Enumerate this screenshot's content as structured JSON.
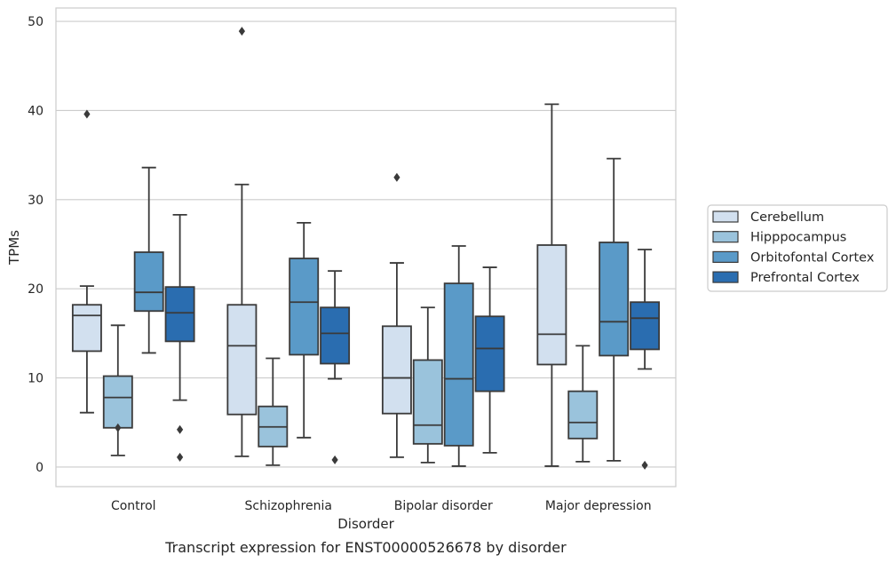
{
  "chart_data": {
    "type": "box",
    "title": "",
    "caption": "Transcript expression for ENST00000526678 by disorder",
    "xlabel": "Disorder",
    "ylabel": "TPMs",
    "ylim": [
      -2.2,
      51.5
    ],
    "yticks": [
      0,
      10,
      20,
      30,
      40,
      50
    ],
    "grid": true,
    "legend_position": "right",
    "categories": [
      "Control",
      "Schizophrenia",
      "Bipolar disorder",
      "Major depression"
    ],
    "series": [
      {
        "name": "Cerebellum",
        "color": "#d2e0ef",
        "boxes": [
          {
            "low": 6.1,
            "q1": 13.0,
            "median": 17.0,
            "q3": 18.2,
            "high": 20.3,
            "outliers": [
              39.6
            ]
          },
          {
            "low": 1.2,
            "q1": 5.9,
            "median": 13.6,
            "q3": 18.2,
            "high": 31.7,
            "outliers": [
              48.9
            ]
          },
          {
            "low": 1.1,
            "q1": 6.0,
            "median": 10.0,
            "q3": 15.8,
            "high": 22.9,
            "outliers": [
              32.5
            ]
          },
          {
            "low": 0.1,
            "q1": 11.5,
            "median": 14.9,
            "q3": 24.9,
            "high": 40.7,
            "outliers": []
          }
        ]
      },
      {
        "name": "Hipppocampus",
        "color": "#9ac3dc",
        "boxes": [
          {
            "low": 1.3,
            "q1": 4.4,
            "median": 7.8,
            "q3": 10.2,
            "high": 15.9,
            "outliers": [
              4.4
            ]
          },
          {
            "low": 0.2,
            "q1": 2.3,
            "median": 4.5,
            "q3": 6.8,
            "high": 12.2,
            "outliers": []
          },
          {
            "low": 0.5,
            "q1": 2.6,
            "median": 4.7,
            "q3": 12.0,
            "high": 17.9,
            "outliers": []
          },
          {
            "low": 0.6,
            "q1": 3.2,
            "median": 5.0,
            "q3": 8.5,
            "high": 13.6,
            "outliers": []
          }
        ]
      },
      {
        "name": "Orbitofontal Cortex",
        "color": "#5a9ac8",
        "boxes": [
          {
            "low": 12.8,
            "q1": 17.5,
            "median": 19.6,
            "q3": 24.1,
            "high": 33.6,
            "outliers": []
          },
          {
            "low": 3.3,
            "q1": 12.6,
            "median": 18.5,
            "q3": 23.4,
            "high": 27.4,
            "outliers": []
          },
          {
            "low": 0.1,
            "q1": 2.4,
            "median": 9.9,
            "q3": 20.6,
            "high": 24.8,
            "outliers": []
          },
          {
            "low": 0.7,
            "q1": 12.5,
            "median": 16.3,
            "q3": 25.2,
            "high": 34.6,
            "outliers": []
          }
        ]
      },
      {
        "name": "Prefrontal Cortex",
        "color": "#2a6db0",
        "boxes": [
          {
            "low": 7.5,
            "q1": 14.1,
            "median": 17.3,
            "q3": 20.2,
            "high": 28.3,
            "outliers": [
              4.2,
              1.1
            ]
          },
          {
            "low": 9.9,
            "q1": 11.6,
            "median": 15.0,
            "q3": 17.9,
            "high": 22.0,
            "outliers": [
              0.8
            ]
          },
          {
            "low": 1.6,
            "q1": 8.5,
            "median": 13.3,
            "q3": 16.9,
            "high": 22.4,
            "outliers": []
          },
          {
            "low": 11.0,
            "q1": 13.2,
            "median": 16.7,
            "q3": 18.5,
            "high": 24.4,
            "outliers": [
              0.2
            ]
          }
        ]
      }
    ]
  }
}
